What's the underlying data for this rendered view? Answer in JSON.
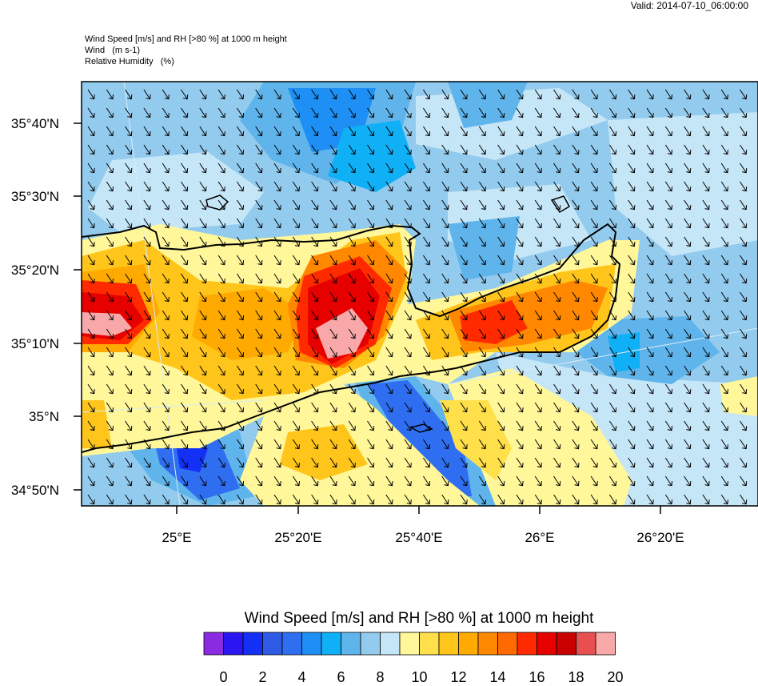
{
  "header": {
    "valid": "Valid: 2014-07-10_06:00:00",
    "title_lines": [
      "Wind Speed [m/s] and RH [>80 %] at 1000 m height",
      "Wind   (m s-1)",
      "Relative Humidity   (%)"
    ]
  },
  "axes": {
    "lat_labels": [
      "35°40'N",
      "35°30'N",
      "35°20'N",
      "35°10'N",
      "35°N",
      "34°50'N"
    ],
    "lon_labels": [
      "25°E",
      "25°20'E",
      "25°40'E",
      "26°E",
      "26°20'E"
    ]
  },
  "colorbar": {
    "title": "Wind Speed [m/s] and RH [>80 %] at 1000 m height",
    "labels": [
      "0",
      "2",
      "4",
      "6",
      "8",
      "10",
      "12",
      "14",
      "16",
      "18",
      "20"
    ],
    "colors": [
      "#8a2be2",
      "#2a16f0",
      "#1430f5",
      "#2f5ae6",
      "#2f6ef0",
      "#1e90f5",
      "#10b0f7",
      "#5fb4ec",
      "#93cbee",
      "#c5e6f7",
      "#fff799",
      "#ffe04a",
      "#ffc51a",
      "#ffaa00",
      "#ff8800",
      "#ff6a00",
      "#ff2a00",
      "#e60000",
      "#c80000",
      "#e85050",
      "#f8a8a8"
    ]
  },
  "map": {
    "wind_direction": "north-west",
    "ocean_color": "#c5e6f7",
    "land_outline": "Crete"
  }
}
